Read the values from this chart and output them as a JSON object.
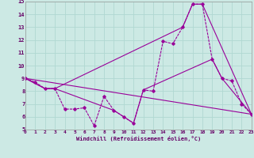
{
  "xlabel": "Windchill (Refroidissement éolien,°C)",
  "xlim": [
    0,
    23
  ],
  "ylim": [
    5,
    15
  ],
  "xticks": [
    0,
    1,
    2,
    3,
    4,
    5,
    6,
    7,
    8,
    9,
    10,
    11,
    12,
    13,
    14,
    15,
    16,
    17,
    18,
    19,
    20,
    21,
    22,
    23
  ],
  "yticks": [
    5,
    6,
    7,
    8,
    9,
    10,
    11,
    12,
    13,
    14,
    15
  ],
  "bg_color": "#cce9e4",
  "line_color": "#990099",
  "grid_color": "#b0d8d2",
  "lines": [
    {
      "x": [
        0,
        1,
        2,
        3,
        4,
        5,
        6,
        7,
        8,
        9,
        10,
        11,
        12,
        13,
        14,
        15,
        16,
        17,
        18,
        19,
        20,
        21,
        22,
        23
      ],
      "y": [
        9,
        8.7,
        8.2,
        8.2,
        6.6,
        6.6,
        6.7,
        5.3,
        7.6,
        6.5,
        6.0,
        5.5,
        8.1,
        8.0,
        11.9,
        11.7,
        13.0,
        14.8,
        14.8,
        10.5,
        9.0,
        8.8,
        7.0,
        6.2
      ],
      "marker": true
    },
    {
      "x": [
        0,
        2,
        3,
        16,
        17,
        18,
        23
      ],
      "y": [
        9,
        8.2,
        8.2,
        13.0,
        14.8,
        14.8,
        6.2
      ],
      "marker": false
    },
    {
      "x": [
        0,
        23
      ],
      "y": [
        9,
        6.2
      ],
      "marker": false
    },
    {
      "x": [
        0,
        2,
        3,
        9,
        10,
        11,
        12,
        19,
        20,
        23
      ],
      "y": [
        9,
        8.2,
        8.2,
        6.5,
        6.0,
        5.5,
        8.1,
        10.5,
        9.0,
        6.2
      ],
      "marker": false
    }
  ]
}
